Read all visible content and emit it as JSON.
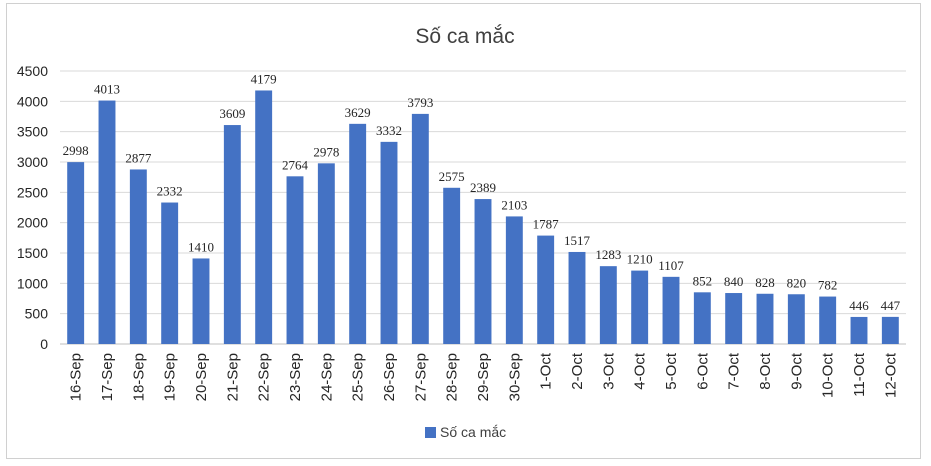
{
  "chart_data": {
    "type": "bar",
    "title": "Số ca mắc",
    "categories": [
      "16-Sep",
      "17-Sep",
      "18-Sep",
      "19-Sep",
      "20-Sep",
      "21-Sep",
      "22-Sep",
      "23-Sep",
      "24-Sep",
      "25-Sep",
      "26-Sep",
      "27-Sep",
      "28-Sep",
      "29-Sep",
      "30-Sep",
      "1-Oct",
      "2-Oct",
      "3-Oct",
      "4-Oct",
      "5-Oct",
      "6-Oct",
      "7-Oct",
      "8-Oct",
      "9-Oct",
      "10-Oct",
      "11-Oct",
      "12-Oct"
    ],
    "series": [
      {
        "name": "Số ca mắc",
        "values": [
          2998,
          4013,
          2877,
          2332,
          1410,
          3609,
          4179,
          2764,
          2978,
          3629,
          3332,
          3793,
          2575,
          2389,
          2103,
          1787,
          1517,
          1283,
          1210,
          1107,
          852,
          840,
          828,
          820,
          782,
          446,
          447
        ],
        "color": "#4472c4"
      }
    ],
    "yticks": [
      0,
      500,
      1000,
      1500,
      2000,
      2500,
      3000,
      3500,
      4000,
      4500
    ],
    "ylim": [
      0,
      4500
    ],
    "grid": true,
    "data_labels": true,
    "legend_position": "bottom"
  }
}
